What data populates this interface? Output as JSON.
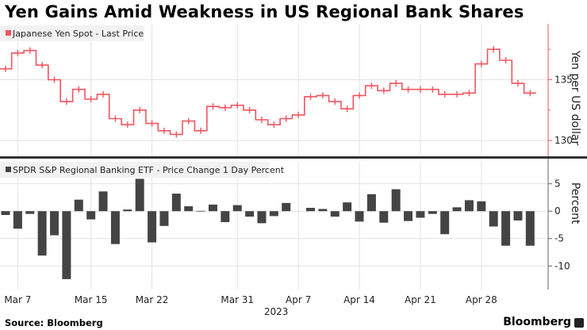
{
  "title": "Yen Gains Amid Weakness in US Regional Bank Shares",
  "footer": {
    "source": "Source: Bloomberg",
    "brand": "Bloomberg"
  },
  "colors": {
    "yen": "#f0555f",
    "etf": "#444444",
    "grid": "#e2e2e2",
    "separator": "#333333"
  },
  "x_axis": {
    "ticks": [
      {
        "date": "Mar 7",
        "label": "Mar 7"
      },
      {
        "date": "Mar 15",
        "label": "Mar 15"
      },
      {
        "date": "Mar 22",
        "label": "Mar 22"
      },
      {
        "date": "Mar 31",
        "label": "Mar 31"
      },
      {
        "date": "Apr 7",
        "label": "Apr 7"
      },
      {
        "date": "Apr 14",
        "label": "Apr 14"
      },
      {
        "date": "Apr 21",
        "label": "Apr 21"
      },
      {
        "date": "Apr 28",
        "label": "Apr 28"
      }
    ],
    "year_label": "2023"
  },
  "chart_data": [
    {
      "type": "line",
      "legend": "Japanese Yen Spot - Last Price",
      "legend_placement": "top-left",
      "ylabel": "Yen per US dollar",
      "y_axis_side": "right",
      "ylim": [
        128.7,
        139.6
      ],
      "yticks": [
        130,
        135
      ],
      "grid": true,
      "x": [
        "Mar 6",
        "Mar 7",
        "Mar 8",
        "Mar 9",
        "Mar 10",
        "Mar 13",
        "Mar 14",
        "Mar 15",
        "Mar 16",
        "Mar 17",
        "Mar 20",
        "Mar 21",
        "Mar 22",
        "Mar 23",
        "Mar 24",
        "Mar 27",
        "Mar 28",
        "Mar 29",
        "Mar 30",
        "Mar 31",
        "Apr 3",
        "Apr 4",
        "Apr 5",
        "Apr 6",
        "Apr 7",
        "Apr 10",
        "Apr 11",
        "Apr 12",
        "Apr 13",
        "Apr 14",
        "Apr 17",
        "Apr 18",
        "Apr 19",
        "Apr 20",
        "Apr 21",
        "Apr 24",
        "Apr 25",
        "Apr 26",
        "Apr 27",
        "Apr 28",
        "May 1",
        "May 2",
        "May 3",
        "May 4"
      ],
      "values": [
        135.9,
        137.2,
        137.4,
        136.2,
        135.0,
        133.2,
        134.2,
        133.4,
        133.8,
        131.8,
        131.3,
        132.5,
        131.4,
        130.8,
        130.5,
        131.6,
        130.8,
        132.8,
        132.7,
        132.9,
        132.5,
        131.7,
        131.3,
        131.8,
        132.1,
        133.6,
        133.7,
        133.2,
        132.6,
        133.7,
        134.5,
        134.1,
        134.7,
        134.2,
        134.2,
        134.2,
        133.8,
        133.8,
        133.9,
        136.3,
        137.5,
        136.6,
        134.7,
        133.9
      ]
    },
    {
      "type": "bar",
      "legend": "SPDR S&P Regional Banking ETF - Price Change 1 Day Percent",
      "legend_placement": "top-left",
      "ylabel": "Percent",
      "y_axis_side": "right",
      "ylim": [
        -14.3,
        9
      ],
      "yticks": [
        5,
        0,
        -5,
        -10
      ],
      "grid": true,
      "x": [
        "Mar 6",
        "Mar 7",
        "Mar 8",
        "Mar 9",
        "Mar 10",
        "Mar 13",
        "Mar 14",
        "Mar 15",
        "Mar 16",
        "Mar 17",
        "Mar 20",
        "Mar 21",
        "Mar 22",
        "Mar 23",
        "Mar 24",
        "Mar 27",
        "Mar 28",
        "Mar 29",
        "Mar 30",
        "Mar 31",
        "Apr 3",
        "Apr 4",
        "Apr 5",
        "Apr 6",
        "Apr 7",
        "Apr 10",
        "Apr 11",
        "Apr 12",
        "Apr 13",
        "Apr 14",
        "Apr 17",
        "Apr 18",
        "Apr 19",
        "Apr 20",
        "Apr 21",
        "Apr 24",
        "Apr 25",
        "Apr 26",
        "Apr 27",
        "Apr 28",
        "May 1",
        "May 2",
        "May 3",
        "May 4"
      ],
      "values": [
        -0.7,
        -3.2,
        -0.5,
        -8.1,
        -4.4,
        -12.4,
        2.1,
        -1.5,
        3.6,
        -6.0,
        0.3,
        5.9,
        -5.7,
        -2.7,
        3.2,
        0.9,
        0.05,
        1.2,
        -2.0,
        1.1,
        -1.0,
        -2.2,
        -0.9,
        1.5,
        null,
        0.6,
        0.4,
        -1.0,
        1.6,
        -1.9,
        3.1,
        -2.1,
        4.0,
        -1.8,
        -1.2,
        -0.5,
        -4.2,
        0.7,
        2.0,
        1.8,
        -2.8,
        -6.3,
        -1.7,
        -6.3
      ]
    }
  ]
}
